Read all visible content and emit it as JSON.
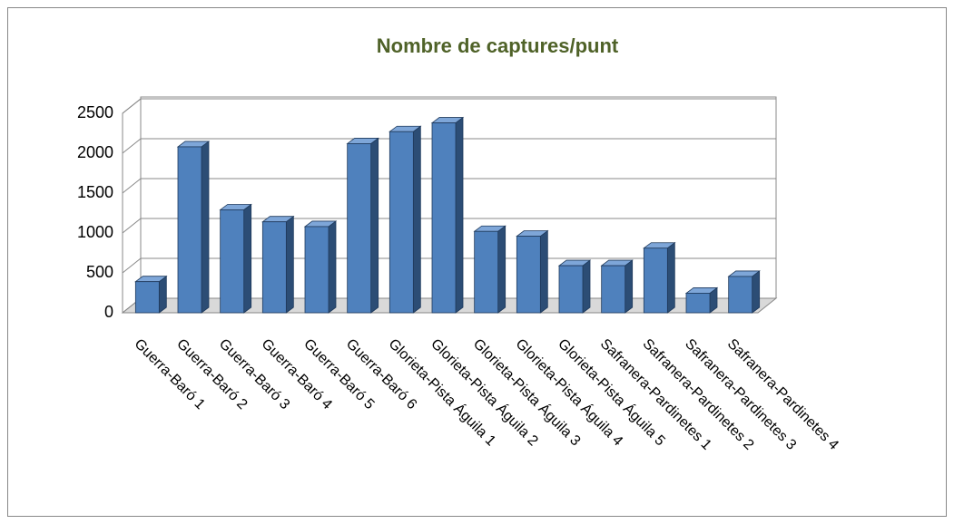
{
  "chart_data": {
    "type": "bar3d",
    "title": "Nombre de captures/punt",
    "categories": [
      "Guerra-Baró 1",
      "Guerra-Baró 2",
      "Guerra-Baró 3",
      "Guerra-Baró 4",
      "Guerra-Baró 5",
      "Guerra-Baró 6",
      "Glorieta-Pista Águila 1",
      "Glorieta-Pista Águila 2",
      "Glorieta-Pista Águila 3",
      "Glorieta-Pista Águila 4",
      "Glorieta-Pista Águila 5",
      "Safranera-Pardinetes 1",
      "Safranera-Pardinetes 2",
      "Safranera-Pardinetes 3",
      "Safranera-Pardinetes 4"
    ],
    "values": [
      390,
      2080,
      1290,
      1140,
      1080,
      2120,
      2270,
      2380,
      1020,
      960,
      590,
      590,
      810,
      245,
      455
    ],
    "color": "#4f81bd",
    "ylim": [
      0,
      2500
    ],
    "yticks": [
      0,
      500,
      1000,
      1500,
      2000,
      2500
    ],
    "grid": true
  }
}
